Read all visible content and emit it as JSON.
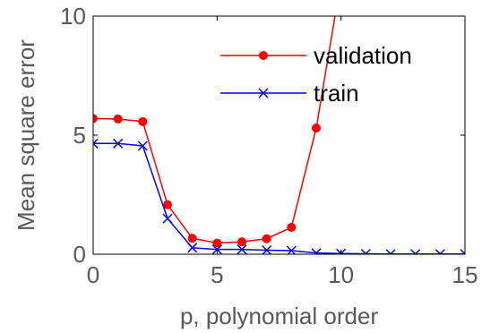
{
  "chart_data": {
    "type": "line",
    "title": "",
    "xlabel": "p, polynomial order",
    "ylabel": "Mean square error",
    "xlim": [
      0,
      15
    ],
    "ylim": [
      0,
      10
    ],
    "x_ticks": [
      "0",
      "5",
      "10",
      "15"
    ],
    "y_ticks": [
      "0",
      "5",
      "10"
    ],
    "grid": false,
    "legend_position": "top-right",
    "series": [
      {
        "name": "validation",
        "color": "#ff0000",
        "marker": "filled-circle",
        "x": [
          0,
          1,
          2,
          3,
          4,
          5,
          6,
          7,
          8,
          9,
          10
        ],
        "y": [
          5.7,
          5.68,
          5.57,
          2.08,
          0.67,
          0.47,
          0.52,
          0.65,
          1.13,
          5.3,
          11.5
        ]
      },
      {
        "name": "train",
        "color": "#0000ff",
        "marker": "x",
        "x": [
          0,
          1,
          2,
          3,
          4,
          5,
          6,
          7,
          8,
          9,
          10,
          11,
          12,
          13,
          14,
          15
        ],
        "y": [
          4.65,
          4.65,
          4.55,
          1.5,
          0.27,
          0.2,
          0.2,
          0.17,
          0.15,
          0.05,
          0.03,
          0.02,
          0.01,
          0.01,
          0.01,
          0.01
        ]
      }
    ]
  }
}
